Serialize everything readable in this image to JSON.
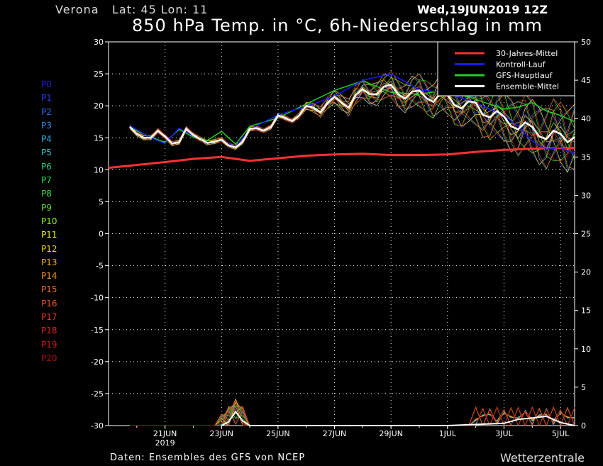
{
  "header": {
    "station": "Verona",
    "latlon": "Lat: 45 Lon: 11",
    "runtime": "Wed,19JUN2019 12Z",
    "title": "850 hPa Temp. in °C, 6h-Niederschlag in mm"
  },
  "footer": {
    "source": "Daten: Ensembles des GFS von NCEP",
    "brand": "Wetterzentrale"
  },
  "members": [
    {
      "label": "P0",
      "color": "#1a1ae6"
    },
    {
      "label": "P1",
      "color": "#2a3af0"
    },
    {
      "label": "P2",
      "color": "#2a66f0"
    },
    {
      "label": "P3",
      "color": "#2a90f0"
    },
    {
      "label": "P4",
      "color": "#2ab0f0"
    },
    {
      "label": "P5",
      "color": "#2ad0d0"
    },
    {
      "label": "P6",
      "color": "#20d080"
    },
    {
      "label": "P7",
      "color": "#20e060"
    },
    {
      "label": "P8",
      "color": "#30e040"
    },
    {
      "label": "P9",
      "color": "#60e030"
    },
    {
      "label": "P10",
      "color": "#90f020"
    },
    {
      "label": "P11",
      "color": "#f0f020"
    },
    {
      "label": "P12",
      "color": "#f0d020"
    },
    {
      "label": "P13",
      "color": "#f0b020"
    },
    {
      "label": "P14",
      "color": "#f09020"
    },
    {
      "label": "P15",
      "color": "#f07020"
    },
    {
      "label": "P16",
      "color": "#f05020"
    },
    {
      "label": "P17",
      "color": "#f03020"
    },
    {
      "label": "P18",
      "color": "#e02020"
    },
    {
      "label": "P19",
      "color": "#c81818"
    },
    {
      "label": "P20",
      "color": "#b01010"
    }
  ],
  "chart_data": {
    "type": "line",
    "x_ticks": [
      {
        "day": 2,
        "label": "21JUN",
        "sub": "2019"
      },
      {
        "day": 4,
        "label": "23JUN",
        "sub": ""
      },
      {
        "day": 6,
        "label": "25JUN",
        "sub": ""
      },
      {
        "day": 8,
        "label": "27JUN",
        "sub": ""
      },
      {
        "day": 10,
        "label": "29JUN",
        "sub": ""
      },
      {
        "day": 12,
        "label": "1JUL",
        "sub": ""
      },
      {
        "day": 14,
        "label": "3JUL",
        "sub": ""
      },
      {
        "day": 16,
        "label": "5JUL",
        "sub": ""
      }
    ],
    "y_left": {
      "min": -30,
      "max": 30,
      "ticks": [
        30,
        25,
        20,
        15,
        10,
        5,
        0,
        -5,
        -10,
        -15,
        -20,
        -25,
        -30
      ]
    },
    "y_right": {
      "min": 0,
      "max": 50,
      "ticks": [
        50,
        45,
        40,
        35,
        30,
        25,
        20,
        15,
        10,
        5,
        0
      ]
    },
    "legend": [
      {
        "name": "30-Jahres-Mittel",
        "color": "#ff3030"
      },
      {
        "name": "Kontroll-Lauf",
        "color": "#1a1aff"
      },
      {
        "name": "GFS-Hauptlauf",
        "color": "#20d020"
      },
      {
        "name": "Ensemble-Mittel",
        "color": "#ffffff"
      }
    ],
    "climatology": {
      "x": [
        0,
        2,
        3,
        4,
        5,
        6,
        7,
        8,
        9,
        10,
        11,
        12,
        13,
        14,
        15,
        16,
        16.5
      ],
      "y": [
        10.3,
        11.2,
        11.7,
        12.0,
        11.4,
        11.8,
        12.2,
        12.4,
        12.5,
        12.3,
        12.3,
        12.4,
        12.8,
        13.1,
        13.3,
        13.4,
        13.4
      ]
    },
    "ensemble_mean": {
      "x": [
        0.75,
        1,
        1.25,
        1.5,
        1.75,
        2,
        2.25,
        2.5,
        2.75,
        3,
        3.25,
        3.5,
        3.75,
        4,
        4.25,
        4.5,
        4.75,
        5,
        5.25,
        5.5,
        5.75,
        6,
        6.25,
        6.5,
        6.75,
        7,
        7.25,
        7.5,
        7.75,
        8,
        8.25,
        8.5,
        8.75,
        9,
        9.25,
        9.5,
        9.75,
        10,
        10.25,
        10.5,
        10.75,
        11,
        11.25,
        11.5,
        11.75,
        12,
        12.25,
        12.5,
        12.75,
        13,
        13.25,
        13.5,
        13.75,
        14,
        14.25,
        14.5,
        14.75,
        15,
        15.25,
        15.5,
        15.75,
        16,
        16.25,
        16.5
      ],
      "y": [
        16.7,
        15.6,
        15.0,
        15.0,
        16.1,
        15.2,
        14.1,
        14.3,
        16.4,
        15.4,
        14.8,
        14.2,
        14.4,
        14.7,
        13.8,
        13.5,
        14.4,
        16.4,
        16.5,
        16.1,
        16.7,
        18.5,
        18.1,
        17.6,
        18.5,
        20.0,
        19.7,
        19.0,
        20.4,
        21.4,
        20.5,
        19.7,
        21.7,
        22.6,
        21.8,
        21.8,
        23.0,
        23.3,
        21.8,
        21.1,
        22.2,
        22.4,
        21.2,
        20.6,
        22.0,
        21.7,
        20.1,
        19.6,
        20.7,
        20.5,
        18.6,
        18.2,
        19.2,
        18.3,
        16.8,
        16.3,
        17.4,
        16.7,
        15.2,
        14.8,
        16.1,
        15.6,
        14.3,
        15.1
      ]
    },
    "control_run": {
      "x": [
        0.75,
        1.5,
        2,
        2.5,
        3,
        3.5,
        4,
        4.5,
        5,
        6,
        7,
        8,
        9,
        10,
        11,
        12,
        13,
        14,
        14.5,
        15,
        15.5,
        16,
        16.5
      ],
      "y": [
        16.9,
        15.0,
        14.1,
        16.5,
        15.3,
        14.3,
        14.5,
        13.6,
        16.3,
        18.6,
        19.9,
        21.5,
        24.0,
        25.0,
        22.5,
        22.0,
        20.5,
        18.5,
        16.8,
        14.5,
        13.2,
        13.5,
        12.5
      ]
    },
    "gfs_main": {
      "x": [
        0.75,
        1.5,
        2,
        2.5,
        3,
        3.5,
        4,
        4.5,
        5,
        6,
        7,
        8,
        9,
        10,
        11,
        12,
        13,
        14,
        14.5,
        15,
        15.5,
        16,
        16.5
      ],
      "y": [
        16.6,
        15.1,
        14.3,
        16.3,
        15.1,
        14.6,
        16.0,
        14.0,
        16.8,
        18.1,
        20.3,
        22.4,
        23.9,
        22.1,
        21.8,
        22.5,
        21.0,
        19.5,
        19.8,
        20.5,
        19.2,
        18.5,
        17.5
      ]
    },
    "precip_mean": {
      "x": [
        4,
        4.25,
        4.5,
        4.75,
        5,
        12,
        14,
        14.5,
        15,
        15.5,
        16,
        16.5
      ],
      "y": [
        0,
        0.5,
        1.8,
        0.6,
        0,
        0,
        0.3,
        0.8,
        1.0,
        1.2,
        0.4,
        0
      ]
    }
  }
}
